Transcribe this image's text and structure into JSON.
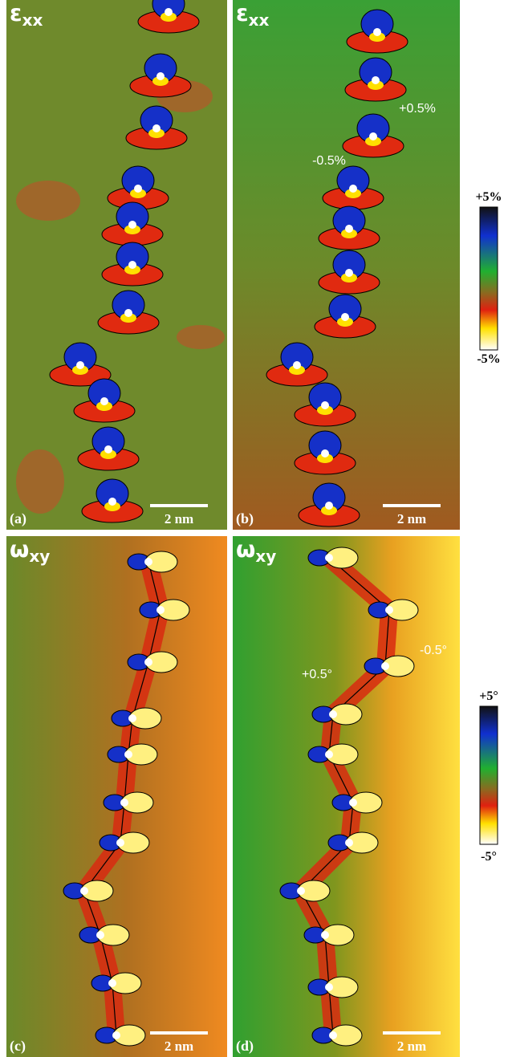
{
  "panels": [
    {
      "symbol": "ε",
      "subscript": "xx",
      "label": "(a)",
      "scale_bar": "2 nm"
    },
    {
      "symbol": "ε",
      "subscript": "xx",
      "label": "(b)",
      "scale_bar": "2 nm",
      "annotations": [
        "+0.5%",
        "-0.5%"
      ]
    },
    {
      "symbol": "ω",
      "subscript": "xy",
      "label": "(c)",
      "scale_bar": "2 nm"
    },
    {
      "symbol": "ω",
      "subscript": "xy",
      "label": "(d)",
      "scale_bar": "2 nm",
      "annotations": [
        "+0.5°",
        "-0.5°"
      ]
    }
  ],
  "colorbars": [
    {
      "top": "+5%",
      "bottom": "-5%"
    },
    {
      "top": "+5°",
      "bottom": "-5°"
    }
  ]
}
